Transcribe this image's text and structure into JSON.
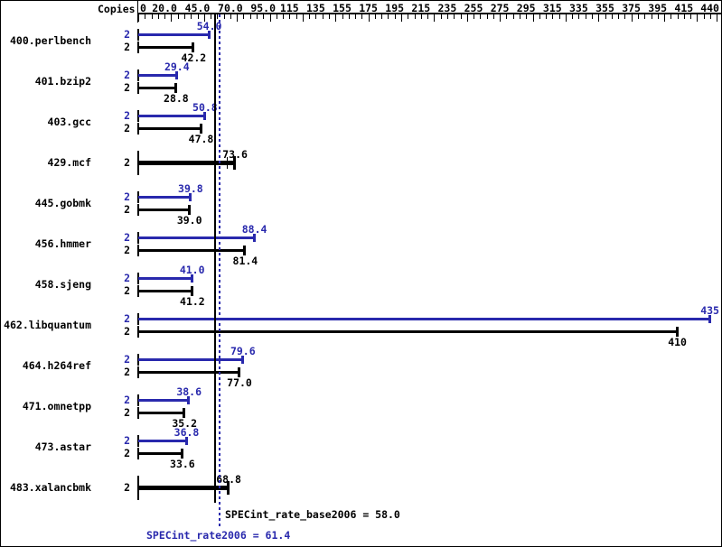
{
  "header": {
    "copies_label": "Copies"
  },
  "colors": {
    "peak_blue": "#2929ad",
    "base_black": "#000000",
    "background": "#ffffff"
  },
  "axis": {
    "min": 0,
    "max": 440,
    "minor_step": 5,
    "major_step": 25,
    "labels": [
      {
        "value": 0,
        "text": "0"
      },
      {
        "value": 20,
        "text": "20.0"
      },
      {
        "value": 45,
        "text": "45.0"
      },
      {
        "value": 70,
        "text": "70.0"
      },
      {
        "value": 95,
        "text": "95.0"
      },
      {
        "value": 115,
        "text": "115"
      },
      {
        "value": 135,
        "text": "135"
      },
      {
        "value": 155,
        "text": "155"
      },
      {
        "value": 175,
        "text": "175"
      },
      {
        "value": 195,
        "text": "195"
      },
      {
        "value": 215,
        "text": "215"
      },
      {
        "value": 235,
        "text": "235"
      },
      {
        "value": 255,
        "text": "255"
      },
      {
        "value": 275,
        "text": "275"
      },
      {
        "value": 295,
        "text": "295"
      },
      {
        "value": 315,
        "text": "315"
      },
      {
        "value": 335,
        "text": "335"
      },
      {
        "value": 355,
        "text": "355"
      },
      {
        "value": 375,
        "text": "375"
      },
      {
        "value": 395,
        "text": "395"
      },
      {
        "value": 415,
        "text": "415"
      },
      {
        "value": 440,
        "text": "440"
      }
    ]
  },
  "benchmarks": [
    {
      "name": "400.perlbench",
      "bars": [
        {
          "kind": "peak",
          "copies": "2",
          "value": 54.0,
          "label": "54.0"
        },
        {
          "kind": "base",
          "copies": "2",
          "value": 42.2,
          "label": "42.2"
        }
      ]
    },
    {
      "name": "401.bzip2",
      "bars": [
        {
          "kind": "peak",
          "copies": "2",
          "value": 29.4,
          "label": "29.4"
        },
        {
          "kind": "base",
          "copies": "2",
          "value": 28.8,
          "label": "28.8"
        }
      ]
    },
    {
      "name": "403.gcc",
      "bars": [
        {
          "kind": "peak",
          "copies": "2",
          "value": 50.8,
          "label": "50.8"
        },
        {
          "kind": "base",
          "copies": "2",
          "value": 47.8,
          "label": "47.8"
        }
      ]
    },
    {
      "name": "429.mcf",
      "bars": [
        {
          "kind": "base_peak_equal",
          "copies": "2",
          "value": 73.6,
          "label": "73.6",
          "inner_tick_value": 67
        }
      ]
    },
    {
      "name": "445.gobmk",
      "bars": [
        {
          "kind": "peak",
          "copies": "2",
          "value": 39.8,
          "label": "39.8"
        },
        {
          "kind": "base",
          "copies": "2",
          "value": 39.0,
          "label": "39.0"
        }
      ]
    },
    {
      "name": "456.hmmer",
      "bars": [
        {
          "kind": "peak",
          "copies": "2",
          "value": 88.4,
          "label": "88.4"
        },
        {
          "kind": "base",
          "copies": "2",
          "value": 81.4,
          "label": "81.4"
        }
      ]
    },
    {
      "name": "458.sjeng",
      "bars": [
        {
          "kind": "peak",
          "copies": "2",
          "value": 41.0,
          "label": "41.0"
        },
        {
          "kind": "base",
          "copies": "2",
          "value": 41.2,
          "label": "41.2"
        }
      ]
    },
    {
      "name": "462.libquantum",
      "bars": [
        {
          "kind": "peak",
          "copies": "2",
          "value": 435,
          "label": "435"
        },
        {
          "kind": "base",
          "copies": "2",
          "value": 410,
          "label": "410"
        }
      ]
    },
    {
      "name": "464.h264ref",
      "bars": [
        {
          "kind": "peak",
          "copies": "2",
          "value": 79.6,
          "label": "79.6"
        },
        {
          "kind": "base",
          "copies": "2",
          "value": 77.0,
          "label": "77.0"
        }
      ]
    },
    {
      "name": "471.omnetpp",
      "bars": [
        {
          "kind": "peak",
          "copies": "2",
          "value": 38.6,
          "label": "38.6"
        },
        {
          "kind": "base",
          "copies": "2",
          "value": 35.2,
          "label": "35.2"
        }
      ]
    },
    {
      "name": "473.astar",
      "bars": [
        {
          "kind": "peak",
          "copies": "2",
          "value": 36.8,
          "label": "36.8"
        },
        {
          "kind": "base",
          "copies": "2",
          "value": 33.6,
          "label": "33.6"
        }
      ]
    },
    {
      "name": "483.xalancbmk",
      "bars": [
        {
          "kind": "base_peak_equal",
          "copies": "2",
          "value": 68.8,
          "label": "68.8"
        }
      ]
    }
  ],
  "metrics": {
    "base": {
      "name": "SPECint_rate_base2006",
      "value": 58.0,
      "label_text": "SPECint_rate_base2006 = 58.0",
      "line_style": "solid",
      "color": "#000000"
    },
    "peak": {
      "name": "SPECint_rate2006",
      "value": 61.4,
      "label_text": "SPECint_rate2006 = 61.4",
      "line_style": "dotted",
      "color": "#2929ad"
    }
  },
  "chart_data": {
    "type": "bar",
    "orientation": "horizontal",
    "title": "",
    "xlabel": "",
    "ylabel": "Copies",
    "xlim": [
      0,
      440
    ],
    "grid": false,
    "axis_tick_label_texts": [
      "0",
      "20.0",
      "45.0",
      "70.0",
      "95.0",
      "115",
      "135",
      "155",
      "175",
      "195",
      "215",
      "235",
      "255",
      "275",
      "295",
      "315",
      "335",
      "355",
      "375",
      "395",
      "415",
      "440"
    ],
    "categories": [
      "400.perlbench",
      "401.bzip2",
      "403.gcc",
      "429.mcf",
      "445.gobmk",
      "456.hmmer",
      "458.sjeng",
      "462.libquantum",
      "464.h264ref",
      "471.omnetpp",
      "473.astar",
      "483.xalancbmk"
    ],
    "copies": [
      2,
      2,
      2,
      2,
      2,
      2,
      2,
      2,
      2,
      2,
      2,
      2
    ],
    "series": [
      {
        "name": "peak (SPECint_rate2006)",
        "color": "#2929ad",
        "values": [
          54.0,
          29.4,
          50.8,
          73.6,
          39.8,
          88.4,
          41.0,
          435,
          79.6,
          38.6,
          36.8,
          68.8
        ]
      },
      {
        "name": "base (SPECint_rate_base2006)",
        "color": "#000000",
        "values": [
          42.2,
          28.8,
          47.8,
          73.6,
          39.0,
          81.4,
          41.2,
          410,
          77.0,
          35.2,
          33.6,
          68.8
        ]
      }
    ],
    "equal_base_peak_drawn_bold": [
      "429.mcf",
      "483.xalancbmk"
    ],
    "reference_lines": [
      {
        "label": "SPECint_rate_base2006 = 58.0",
        "value": 58.0,
        "color": "#000000",
        "style": "solid"
      },
      {
        "label": "SPECint_rate2006 = 61.4",
        "value": 61.4,
        "color": "#2929ad",
        "style": "dotted"
      }
    ],
    "legend_position": "none"
  }
}
